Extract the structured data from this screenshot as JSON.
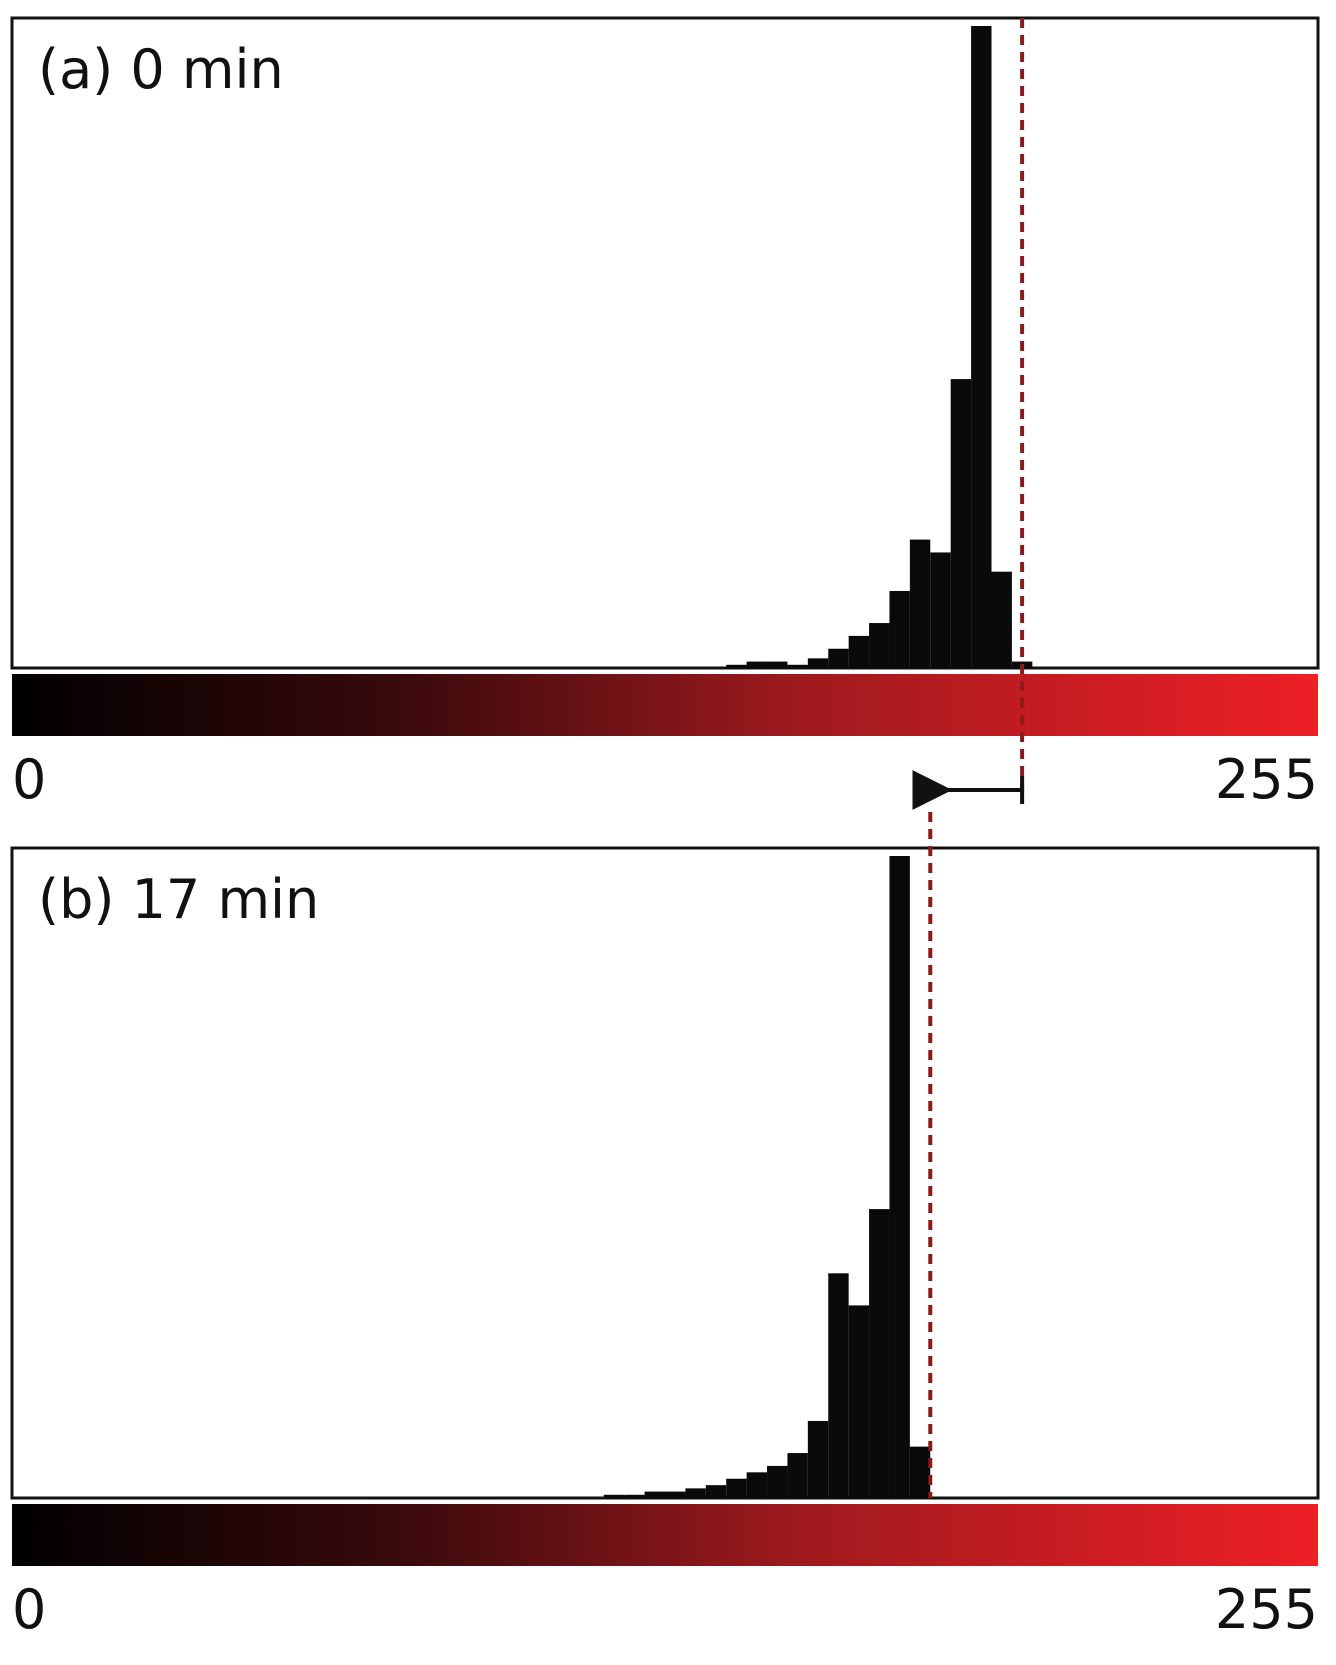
{
  "chart_data": [
    {
      "type": "histogram",
      "title": "(a) 0 min",
      "color": "#0a0a0a",
      "bins": [
        0,
        4,
        8,
        12,
        16,
        20,
        24,
        28,
        32,
        36,
        40,
        44,
        48,
        52,
        56,
        60,
        64,
        68,
        72,
        76,
        80,
        84,
        88,
        92,
        96,
        100,
        104,
        108,
        112,
        116,
        120,
        124,
        128,
        132,
        136,
        140,
        144,
        148,
        152,
        156,
        160,
        164,
        168,
        172,
        176,
        180,
        184,
        188,
        192,
        196,
        200,
        204,
        208,
        212,
        216,
        220,
        224,
        228,
        232,
        236,
        240,
        244,
        248,
        252,
        256
      ],
      "values": [
        0,
        0,
        0,
        0,
        0,
        0,
        0,
        0,
        0,
        0,
        0,
        0,
        0,
        0,
        0,
        0,
        0,
        0,
        0,
        0,
        0,
        0,
        0,
        0,
        0,
        0,
        0,
        0,
        0,
        0,
        0,
        0,
        0,
        0,
        0,
        0.5,
        1,
        1,
        0.5,
        1.5,
        3,
        5,
        7,
        12,
        20,
        18,
        45,
        100,
        15,
        1,
        0,
        0,
        0,
        0,
        0,
        0,
        0,
        0,
        0,
        0,
        0,
        0,
        0,
        0
      ],
      "xlim": [
        0,
        256
      ],
      "xticks": [
        0,
        255
      ],
      "ylim": [
        0,
        100
      ],
      "threshold": 198,
      "threshold_color": "#8b1a1a"
    },
    {
      "type": "histogram",
      "title": "(b) 17 min",
      "color": "#0a0a0a",
      "bins": [
        0,
        4,
        8,
        12,
        16,
        20,
        24,
        28,
        32,
        36,
        40,
        44,
        48,
        52,
        56,
        60,
        64,
        68,
        72,
        76,
        80,
        84,
        88,
        92,
        96,
        100,
        104,
        108,
        112,
        116,
        120,
        124,
        128,
        132,
        136,
        140,
        144,
        148,
        152,
        156,
        160,
        164,
        168,
        172,
        176,
        180,
        184,
        188,
        192,
        196,
        200,
        204,
        208,
        212,
        216,
        220,
        224,
        228,
        232,
        236,
        240,
        244,
        248,
        252,
        256
      ],
      "values": [
        0,
        0,
        0,
        0,
        0,
        0,
        0,
        0,
        0,
        0,
        0,
        0,
        0,
        0,
        0,
        0,
        0,
        0,
        0,
        0,
        0,
        0,
        0,
        0,
        0,
        0,
        0,
        0,
        0,
        0.5,
        0.5,
        1,
        1,
        1.5,
        2,
        3,
        4,
        5,
        7,
        12,
        35,
        30,
        45,
        100,
        8,
        0,
        0,
        0,
        0,
        0,
        0,
        0,
        0,
        0,
        0,
        0,
        0,
        0,
        0,
        0,
        0,
        0,
        0,
        0
      ],
      "xlim": [
        0,
        256
      ],
      "xticks": [
        0,
        255
      ],
      "ylim": [
        0,
        100
      ],
      "threshold": 180,
      "threshold_color": "#8b1a1a"
    }
  ]
}
